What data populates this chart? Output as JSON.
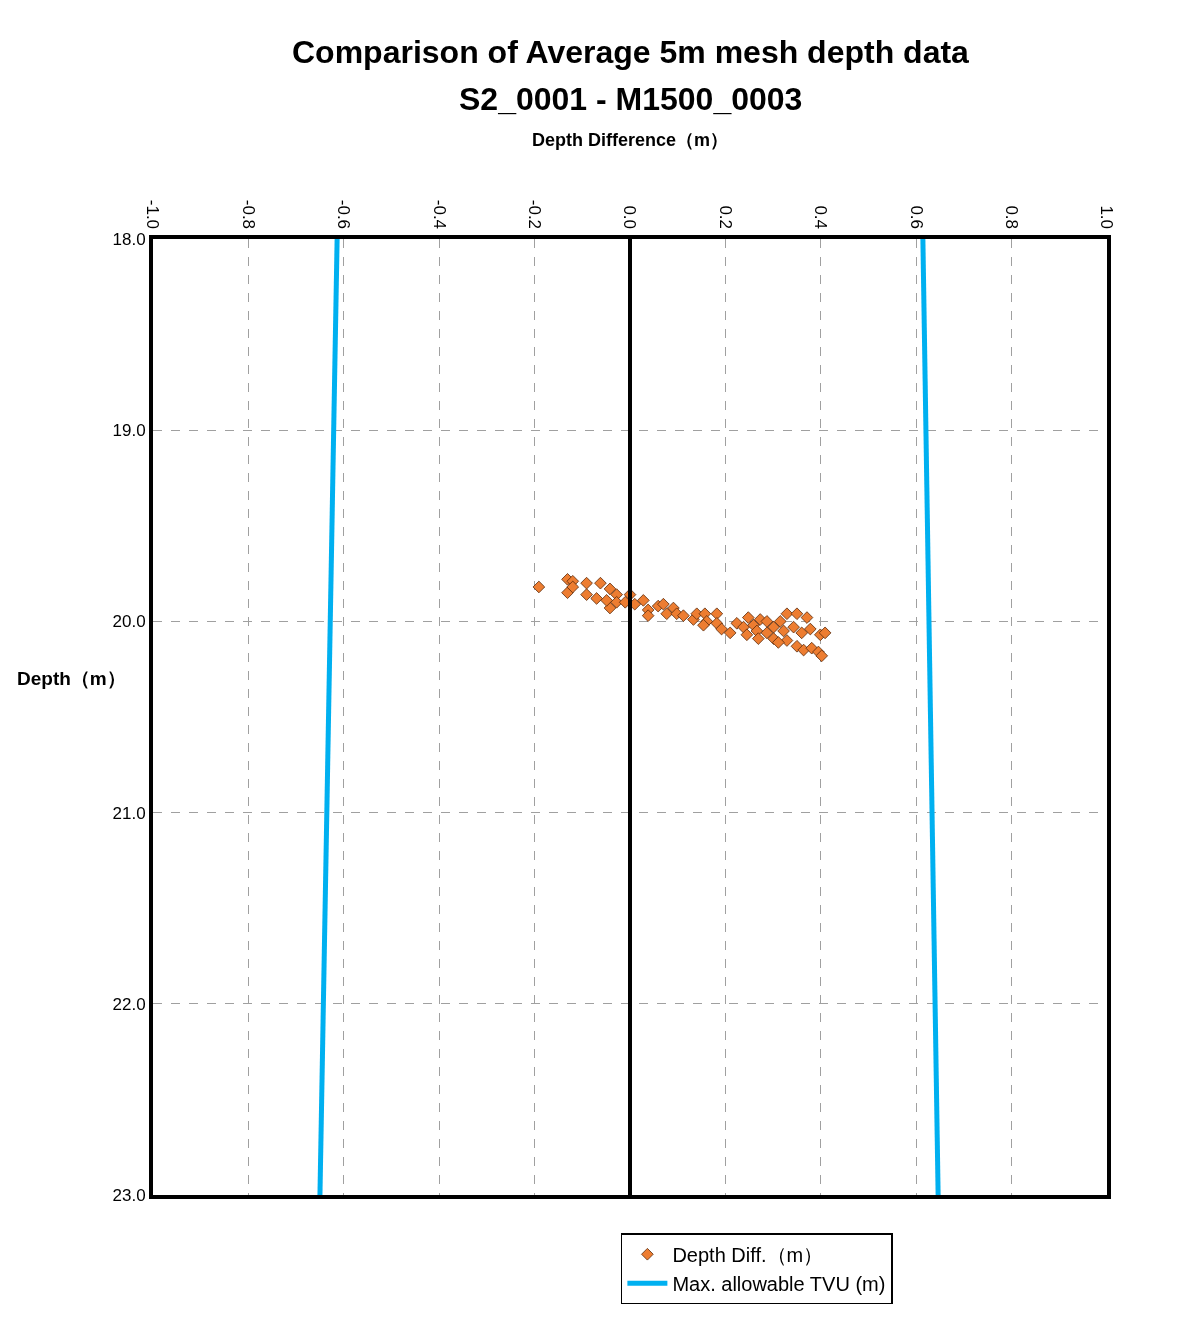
{
  "chart_data": {
    "type": "scatter",
    "title": "Comparison of Average 5m mesh depth data",
    "subtitle": "S2_0001 - M1500_0003",
    "xlabel": "Depth Difference（m）",
    "ylabel": "Depth（m）",
    "xlim": [
      -1.0,
      1.0
    ],
    "ylim": [
      23.0,
      18.0
    ],
    "xticks": [
      {
        "value": -1.0,
        "label": "-1.0"
      },
      {
        "value": -0.8,
        "label": "-0.8"
      },
      {
        "value": -0.6,
        "label": "-0.6"
      },
      {
        "value": -0.4,
        "label": "-0.4"
      },
      {
        "value": -0.2,
        "label": "-0.2"
      },
      {
        "value": 0.0,
        "label": "0.0"
      },
      {
        "value": 0.2,
        "label": "0.2"
      },
      {
        "value": 0.4,
        "label": "0.4"
      },
      {
        "value": 0.6,
        "label": "0.6"
      },
      {
        "value": 0.8,
        "label": "0.8"
      },
      {
        "value": 1.0,
        "label": "1.0"
      }
    ],
    "yticks": [
      {
        "value": 18.0,
        "label": "18.0"
      },
      {
        "value": 19.0,
        "label": "19.0"
      },
      {
        "value": 20.0,
        "label": "20.0"
      },
      {
        "value": 21.0,
        "label": "21.0"
      },
      {
        "value": 22.0,
        "label": "22.0"
      },
      {
        "value": 23.0,
        "label": "23.0"
      }
    ],
    "grid": true,
    "legend": "bottom",
    "ref_lines": [
      {
        "axis": "x",
        "value": 0.0,
        "color": "#000000"
      }
    ],
    "series": [
      {
        "name": "Depth Diff.（m）",
        "marker": "diamond",
        "color": "#ed7d31",
        "x": [
          -0.191,
          -0.131,
          -0.12,
          -0.131,
          -0.12,
          -0.091,
          -0.091,
          -0.062,
          -0.07,
          -0.042,
          -0.042,
          -0.028,
          -0.049,
          -0.028,
          -0.01,
          0.0,
          0.01,
          0.028,
          0.038,
          0.038,
          0.059,
          0.07,
          0.077,
          0.091,
          0.098,
          0.112,
          0.133,
          0.14,
          0.157,
          0.161,
          0.182,
          0.182,
          0.192,
          0.21,
          0.224,
          0.238,
          0.248,
          0.259,
          0.266,
          0.273,
          0.287,
          0.287,
          0.301,
          0.301,
          0.315,
          0.322,
          0.329,
          0.329,
          0.343,
          0.35,
          0.35,
          0.36,
          0.371,
          0.378,
          0.364,
          0.381,
          0.395,
          0.402,
          0.399,
          0.409,
          0.154,
          0.245,
          0.269,
          0.311
        ],
        "values": [
          19.82,
          19.78,
          19.79,
          19.85,
          19.82,
          19.8,
          19.86,
          19.8,
          19.88,
          19.83,
          19.93,
          19.86,
          19.89,
          19.9,
          19.9,
          19.86,
          19.91,
          19.89,
          19.94,
          19.97,
          19.92,
          19.91,
          19.96,
          19.93,
          19.96,
          19.97,
          19.99,
          19.96,
          19.96,
          20.0,
          19.96,
          20.01,
          20.04,
          20.06,
          20.01,
          20.03,
          19.98,
          20.02,
          20.05,
          19.99,
          20.0,
          20.06,
          20.03,
          20.09,
          20.0,
          20.05,
          19.96,
          20.1,
          20.03,
          19.96,
          20.13,
          20.06,
          19.98,
          20.04,
          20.15,
          20.14,
          20.16,
          20.18,
          20.07,
          20.06,
          20.02,
          20.07,
          20.09,
          20.11
        ]
      },
      {
        "name": "Max. allowable TVU (m)",
        "type": "line",
        "line_style": "solid",
        "color": "#00b0f0",
        "x": [
          -0.614,
          -0.65
        ],
        "values": [
          18.0,
          23.0
        ]
      },
      {
        "type": "line",
        "line_style": "solid",
        "color": "#00b0f0",
        "x": [
          0.614,
          0.646
        ],
        "values": [
          18.0,
          23.0
        ]
      }
    ]
  }
}
